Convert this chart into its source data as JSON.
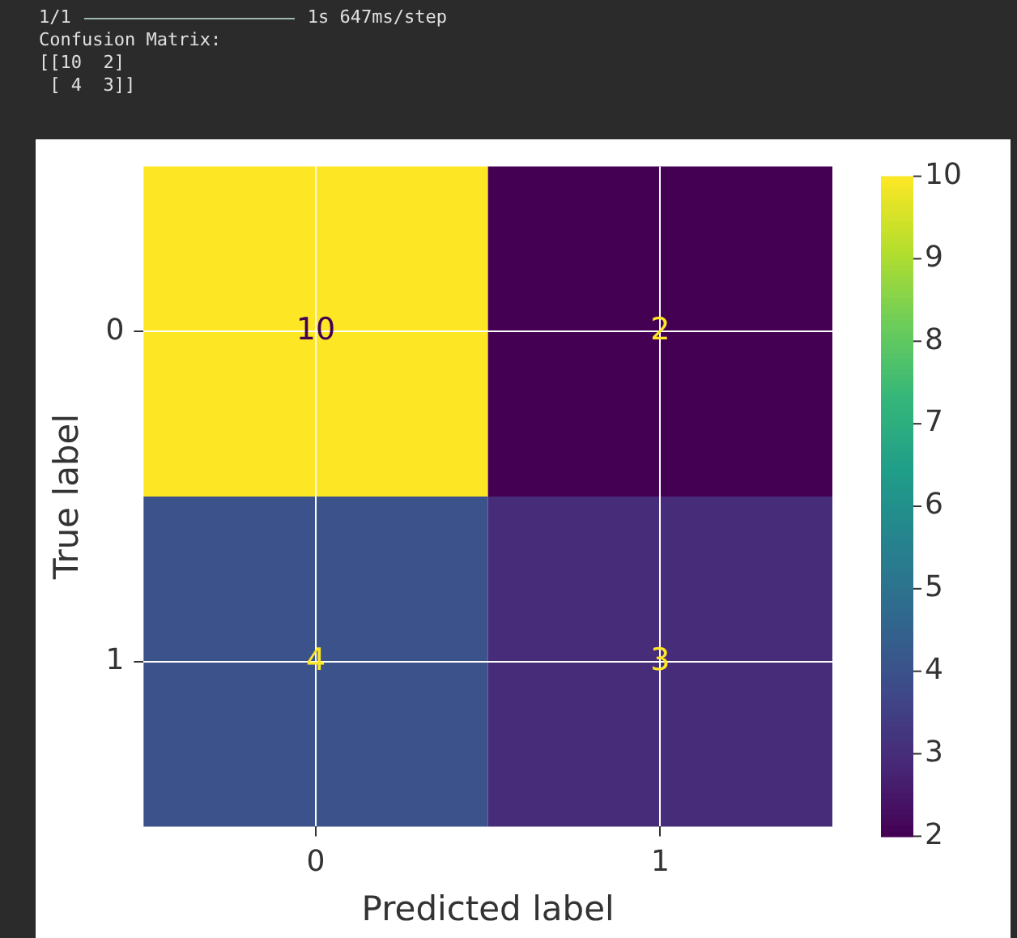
{
  "chart_data": {
    "type": "heatmap",
    "annotations": [
      "1/1",
      "1s 647ms/step",
      "Confusion Matrix:",
      "[[10  2]",
      " [ 4  3]]"
    ],
    "xlabel": "Predicted label",
    "ylabel": "True label",
    "categories": [
      "0",
      "1"
    ],
    "y_categories": [
      "0",
      "1"
    ],
    "cells": [
      [
        10,
        2
      ],
      [
        4,
        3
      ]
    ],
    "data_labels": true,
    "clim": [
      2,
      10
    ],
    "cticks": [
      2,
      3,
      4,
      5,
      6,
      7,
      8,
      9,
      10
    ],
    "grid": true
  }
}
